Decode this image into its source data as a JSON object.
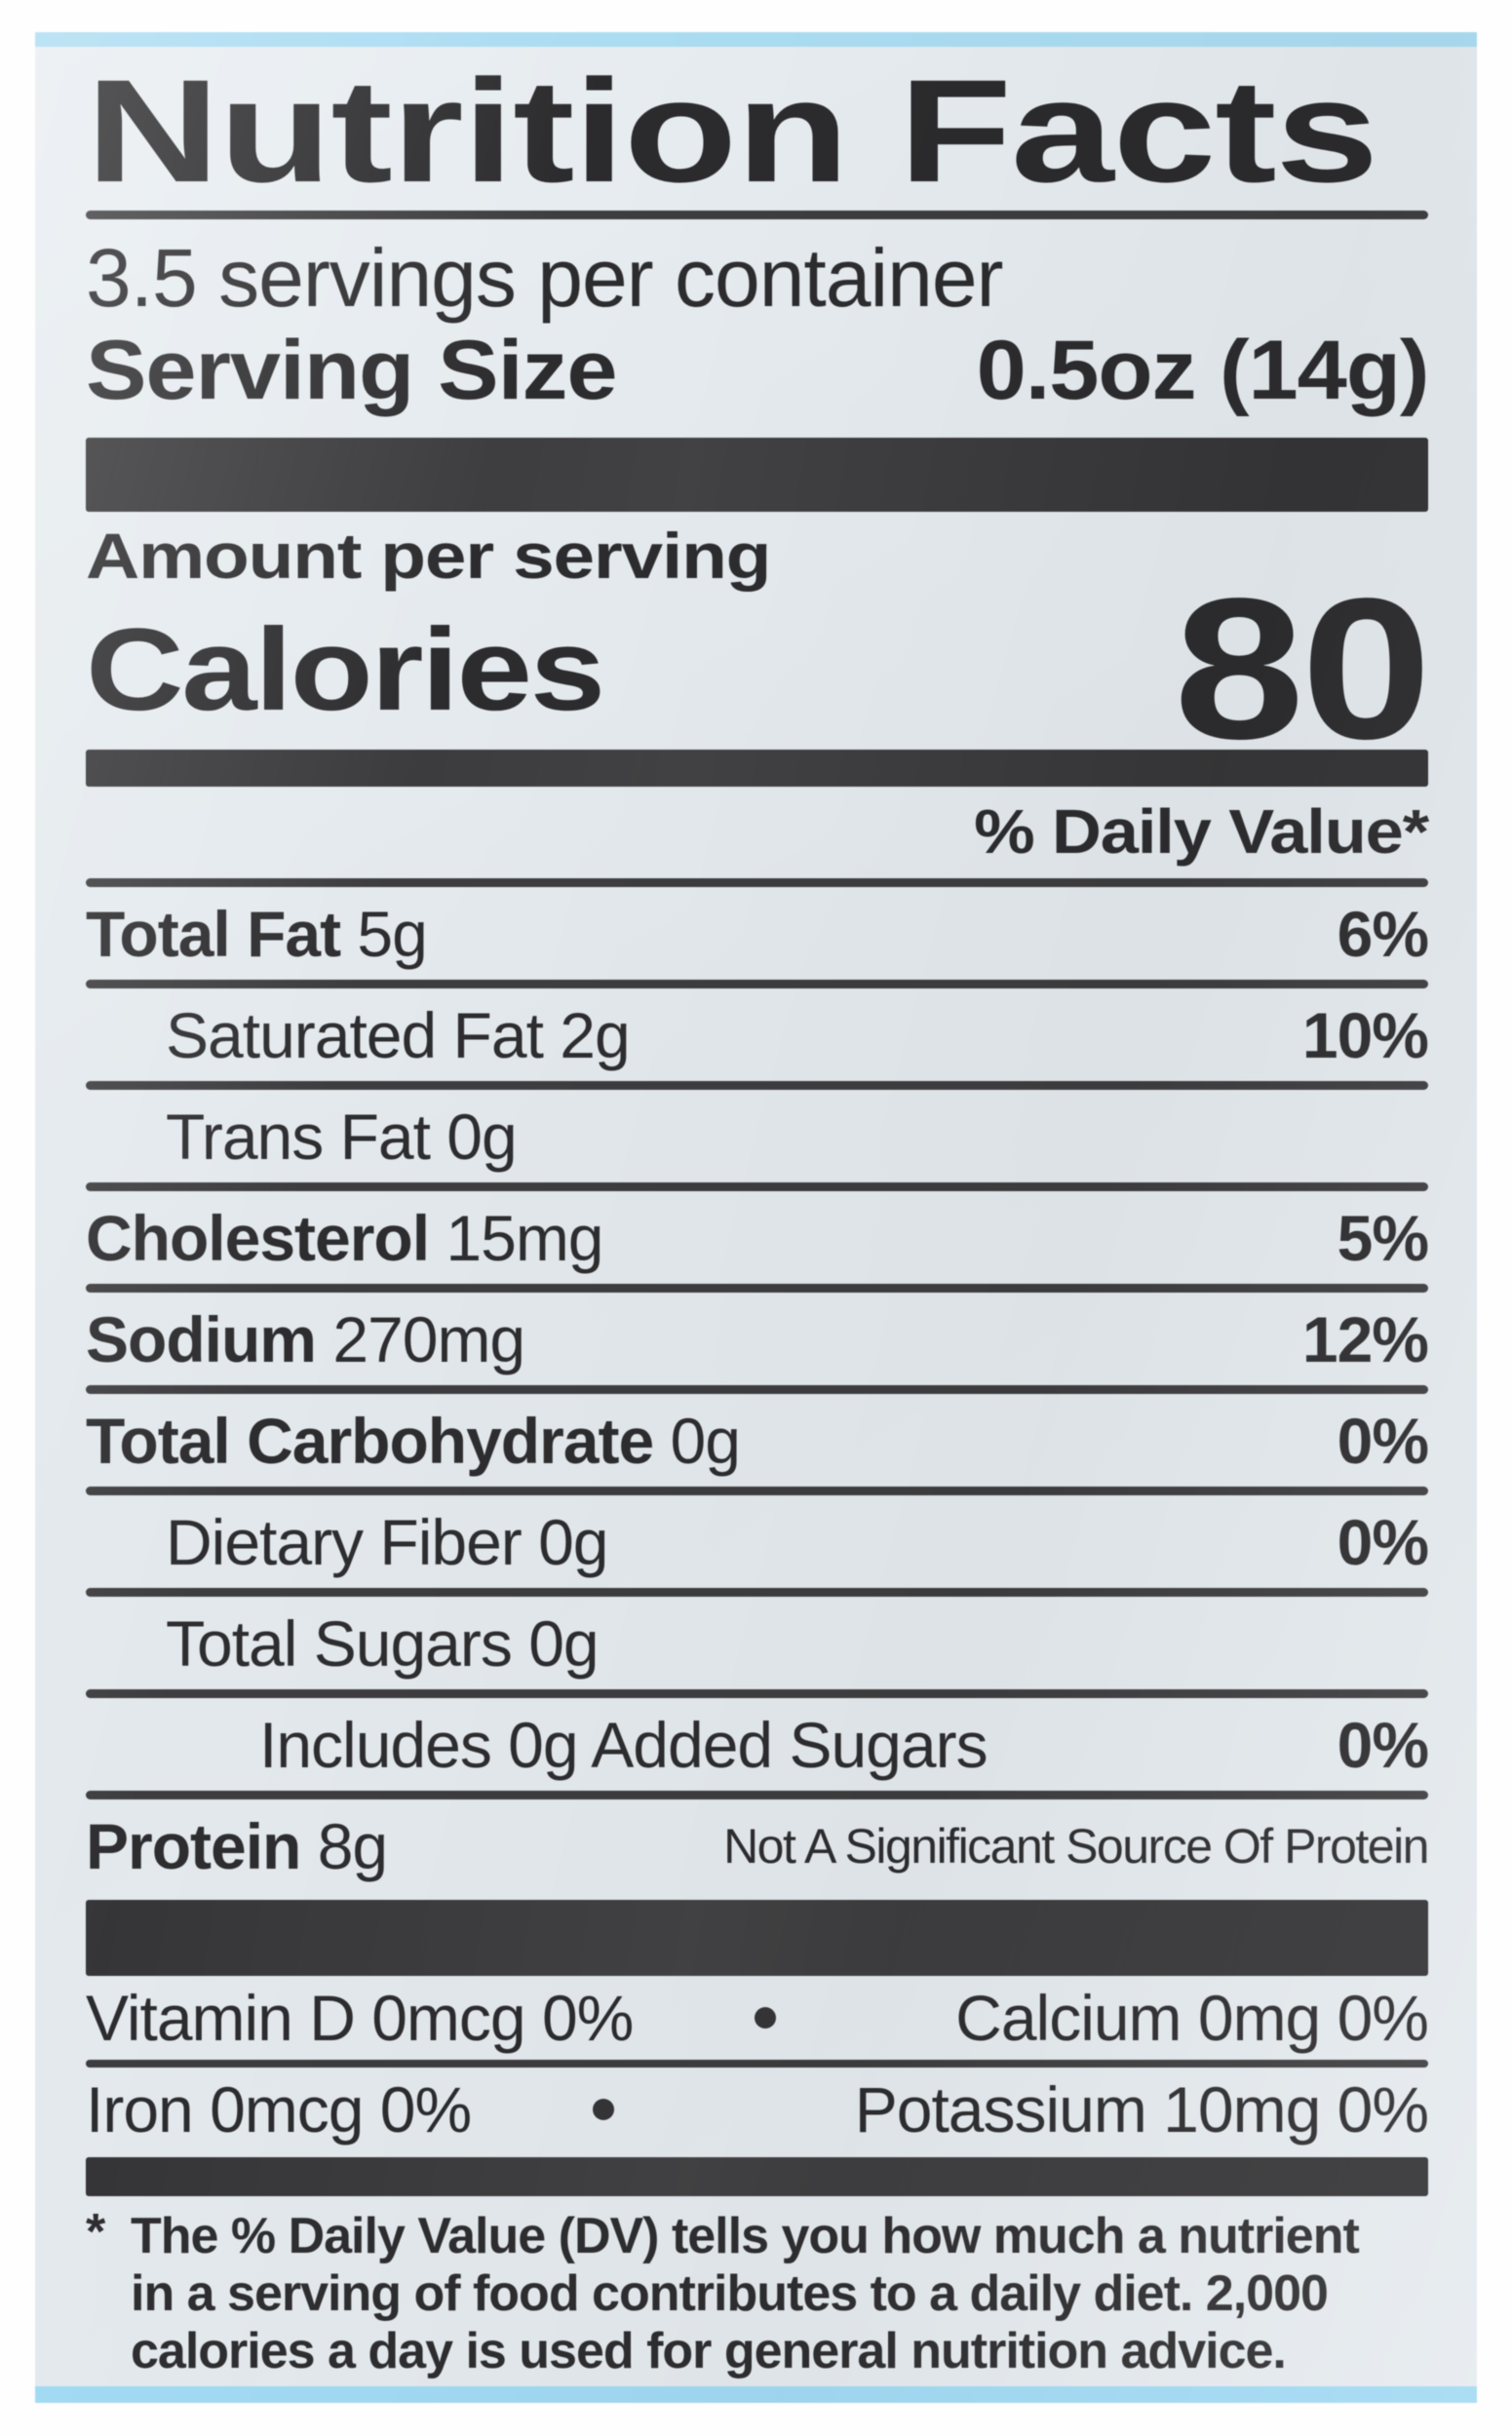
{
  "label": {
    "title": "Nutrition Facts",
    "servings_per_container": "3.5 servings per container",
    "serving_size_label": "Serving Size",
    "serving_size_value": "0.5oz (14g)",
    "amount_per_serving": "Amount per serving",
    "calories_label": "Calories",
    "calories_value": "80",
    "daily_value_header": "% Daily Value*",
    "nutrients": [
      {
        "key": "total-fat",
        "name": "Total Fat",
        "amount": "5g",
        "dv": "6%",
        "bold": true,
        "indent": 0
      },
      {
        "key": "saturated-fat",
        "name": "Saturated Fat",
        "amount": "2g",
        "dv": "10%",
        "bold": false,
        "indent": 1
      },
      {
        "key": "trans-fat",
        "name": "Trans Fat",
        "amount": "0g",
        "dv": "",
        "bold": false,
        "indent": 1
      },
      {
        "key": "cholesterol",
        "name": "Cholesterol",
        "amount": "15mg",
        "dv": "5%",
        "bold": true,
        "indent": 0
      },
      {
        "key": "sodium",
        "name": "Sodium",
        "amount": "270mg",
        "dv": "12%",
        "bold": true,
        "indent": 0
      },
      {
        "key": "total-carbohydrate",
        "name": "Total Carbohydrate",
        "amount": "0g",
        "dv": "0%",
        "bold": true,
        "indent": 0
      },
      {
        "key": "dietary-fiber",
        "name": "Dietary Fiber",
        "amount": "0g",
        "dv": "0%",
        "bold": false,
        "indent": 1
      },
      {
        "key": "total-sugars",
        "name": "Total Sugars",
        "amount": "0g",
        "dv": "",
        "bold": false,
        "indent": 1
      },
      {
        "key": "added-sugars",
        "name": "Includes 0g Added Sugars",
        "amount": "",
        "dv": "0%",
        "bold": false,
        "indent": 2
      },
      {
        "key": "protein",
        "name": "Protein",
        "amount": "8g",
        "dv": "",
        "note": "Not A Significant Source Of Protein",
        "bold": true,
        "indent": 0
      }
    ],
    "micronutrients": [
      {
        "key": "row-1",
        "left": "Vitamin D 0mcg 0%",
        "right": "Calcium 0mg 0%"
      },
      {
        "key": "row-2",
        "left": "Iron 0mcg 0%",
        "right": "Potassium 10mg 0%"
      }
    ],
    "footnote_asterisk": "*",
    "footnote_lines": [
      "The % Daily Value (DV) tells you how much a nutrient",
      "in a serving of food contributes to a daily diet. 2,000",
      "calories a day is used for general nutrition advice."
    ],
    "colors": {
      "package_stripe_blue": "#a6dbf3",
      "label_background": "#e4eaee",
      "bar_dark": "#3a3a3c",
      "text_dark": "#2c2c2e"
    }
  }
}
